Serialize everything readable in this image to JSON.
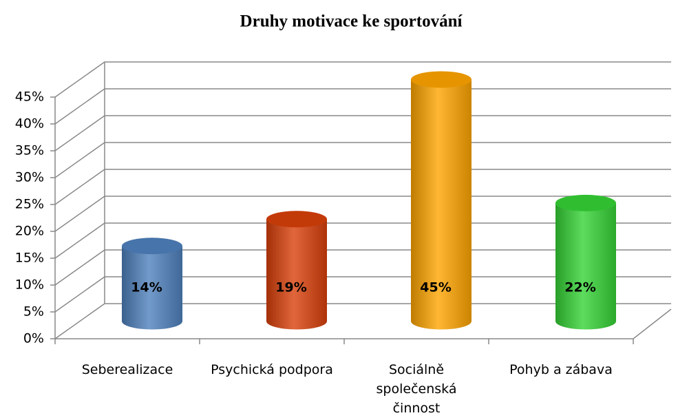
{
  "chart_data": {
    "type": "bar3d",
    "title": "Druhy motivace ke sportování",
    "categories": [
      "Seberealizace",
      "Psychická podpora",
      "Sociálně společenská činnost",
      "Pohyb a zábava"
    ],
    "values": [
      14,
      19,
      45,
      22
    ],
    "value_labels": [
      "14%",
      "19%",
      "45%",
      "22%"
    ],
    "colors": [
      "#4f81bd",
      "#d9400a",
      "#ffa500",
      "#35d335"
    ],
    "ylim": [
      0,
      45
    ],
    "yticks": [
      {
        "value": 0,
        "label": "0%"
      },
      {
        "value": 5,
        "label": "5%"
      },
      {
        "value": 10,
        "label": "10%"
      },
      {
        "value": 15,
        "label": "15%"
      },
      {
        "value": 20,
        "label": "20%"
      },
      {
        "value": 25,
        "label": "25%"
      },
      {
        "value": 30,
        "label": "30%"
      },
      {
        "value": 35,
        "label": "35%"
      },
      {
        "value": 40,
        "label": "40%"
      },
      {
        "value": 45,
        "label": "45%"
      }
    ],
    "grid": true
  }
}
